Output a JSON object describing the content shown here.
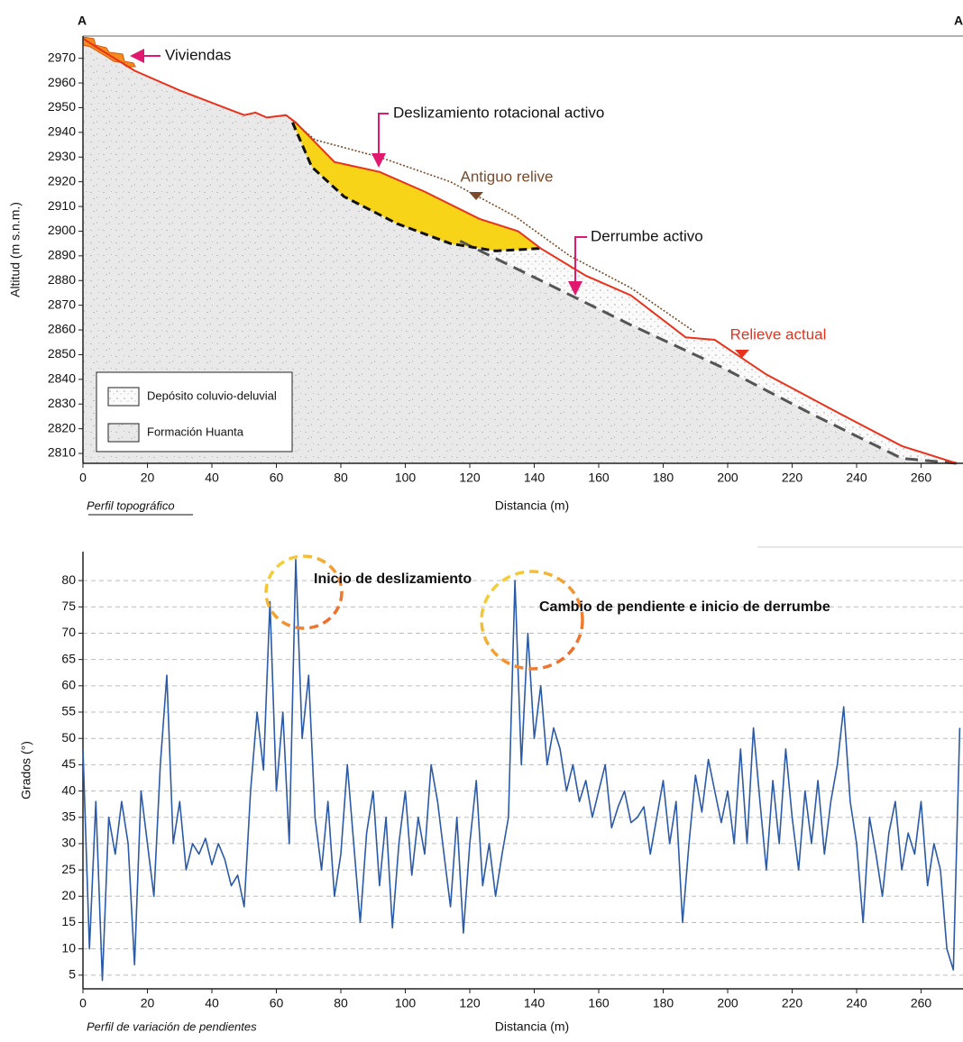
{
  "chart_data": [
    {
      "type": "profile",
      "corner_labels": [
        "A",
        "A"
      ],
      "xlabel": "Distancia (m)",
      "ylabel": "Altitud (m s.n.m.)",
      "caption": "Perfil topográfico",
      "xlim": [
        0,
        273
      ],
      "ylim": [
        2806,
        2979
      ],
      "xticks": [
        0,
        20,
        40,
        60,
        80,
        100,
        120,
        140,
        160,
        180,
        200,
        220,
        240,
        260
      ],
      "yticks": [
        2810,
        2820,
        2830,
        2840,
        2850,
        2860,
        2870,
        2880,
        2890,
        2900,
        2910,
        2920,
        2930,
        2940,
        2950,
        2960,
        2970
      ],
      "series": [
        {
          "name": "Relieve actual",
          "color": "#e8321c",
          "x": [
            0,
            3.6,
            16,
            30,
            50,
            53.5,
            57,
            63,
            66,
            78,
            92,
            106,
            123,
            135,
            142,
            156,
            170,
            187,
            196,
            212,
            235,
            254,
            271
          ],
          "values": [
            2978,
            2975,
            2965,
            2957,
            2947,
            2948,
            2946,
            2947,
            2944,
            2928,
            2924,
            2916,
            2905,
            2900,
            2893,
            2882,
            2874,
            2857,
            2856,
            2842,
            2826,
            2813,
            2806
          ]
        },
        {
          "name": "Antiguo relive",
          "color": "#7a4a2a",
          "x": [
            63,
            72,
            92,
            114,
            134,
            151,
            170,
            190
          ],
          "values": [
            2947,
            2937,
            2930,
            2920,
            2906,
            2890,
            2877,
            2859
          ]
        },
        {
          "color": "#111111",
          "x": [
            65,
            71,
            81,
            97.5,
            114,
            128,
            142
          ],
          "values": [
            2944,
            2926,
            2914,
            2903,
            2895,
            2892,
            2893
          ]
        },
        {
          "color": "#555555",
          "x": [
            117,
            142,
            170,
            198,
            226,
            254,
            271
          ],
          "values": [
            2896,
            2880,
            2862,
            2845,
            2826,
            2808,
            2806
          ]
        }
      ],
      "annotations": [
        {
          "text": "Viviendas"
        },
        {
          "text": "Deslizamiento rotacional activo"
        },
        {
          "text": "Derrumbe activo"
        }
      ],
      "legend": [
        "Depósito coluvio-deluvial",
        "Formación Huanta"
      ],
      "fill_colors": {
        "deposit": "#f7d417",
        "rock": "#e9e9e9",
        "colluvial": "#fafafa"
      }
    },
    {
      "type": "line",
      "xlabel": "Distancia (m)",
      "ylabel": "Grados (°)",
      "caption": "Perfil de variación de pendientes",
      "xlim": [
        0,
        273
      ],
      "ylim": [
        2.4,
        85.5
      ],
      "xticks": [
        0,
        20,
        40,
        60,
        80,
        100,
        120,
        140,
        160,
        180,
        200,
        220,
        240,
        260
      ],
      "yticks": [
        5,
        10,
        15,
        20,
        25,
        30,
        35,
        40,
        45,
        50,
        55,
        60,
        65,
        70,
        75,
        80
      ],
      "grid": true,
      "series": [
        {
          "color": "#2b5aa6",
          "x": [
            0,
            2,
            4,
            6,
            8,
            10,
            12,
            14,
            16,
            18,
            20,
            22,
            24,
            26,
            28,
            30,
            32,
            34,
            36,
            38,
            40,
            42,
            44,
            46,
            48,
            50,
            52,
            54,
            56,
            58,
            60,
            62,
            64,
            66,
            68,
            70,
            72,
            74,
            76,
            78,
            80,
            82,
            84,
            86,
            88,
            90,
            92,
            94,
            96,
            98,
            100,
            102,
            104,
            106,
            108,
            110,
            112,
            114,
            116,
            118,
            120,
            122,
            124,
            126,
            128,
            130,
            132,
            134,
            136,
            138,
            140,
            142,
            144,
            146,
            148,
            150,
            152,
            154,
            156,
            158,
            160,
            162,
            164,
            166,
            168,
            170,
            172,
            174,
            176,
            178,
            180,
            182,
            184,
            186,
            188,
            190,
            192,
            194,
            196,
            198,
            200,
            202,
            204,
            206,
            208,
            210,
            212,
            214,
            216,
            218,
            220,
            222,
            224,
            226,
            228,
            230,
            232,
            234,
            236,
            238,
            240,
            242,
            244,
            246,
            248,
            250,
            252,
            254,
            256,
            258,
            260,
            262,
            264,
            266,
            268,
            270,
            272
          ],
          "values": [
            48,
            10,
            38,
            4,
            35,
            28,
            38,
            30,
            7,
            40,
            30,
            20,
            45,
            62,
            30,
            38,
            25,
            30,
            28,
            31,
            26,
            30,
            27,
            22,
            24,
            18,
            40,
            55,
            44,
            76,
            40,
            55,
            30,
            84,
            50,
            62,
            35,
            25,
            38,
            20,
            28,
            45,
            30,
            15,
            32,
            40,
            22,
            35,
            14,
            30,
            40,
            24,
            35,
            28,
            45,
            38,
            28,
            18,
            35,
            13,
            30,
            42,
            22,
            30,
            20,
            28,
            35,
            80,
            45,
            70,
            50,
            60,
            45,
            52,
            48,
            40,
            45,
            38,
            42,
            35,
            40,
            45,
            33,
            37,
            40,
            34,
            35,
            37,
            28,
            35,
            42,
            30,
            38,
            15,
            30,
            43,
            36,
            46,
            40,
            34,
            40,
            30,
            48,
            30,
            52,
            38,
            25,
            42,
            30,
            48,
            35,
            25,
            40,
            30,
            42,
            28,
            38,
            45,
            56,
            38,
            30,
            15,
            35,
            28,
            20,
            32,
            38,
            25,
            32,
            28,
            38,
            22,
            30,
            25,
            10,
            6,
            52
          ]
        }
      ],
      "annotations": [
        {
          "text": "Inicio de deslizamiento"
        },
        {
          "text": "Cambio de pendiente e inicio de derrumbe"
        }
      ]
    }
  ]
}
